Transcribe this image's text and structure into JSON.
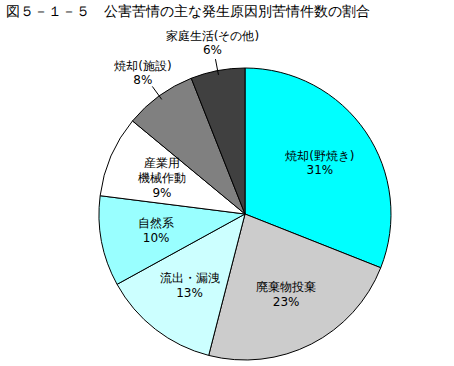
{
  "chart_data": {
    "type": "pie",
    "title": "図５－１－５　公害苦情の主な発生原因別苦情件数の割合",
    "categories": [
      "焼却(野焼き)",
      "廃棄物投棄",
      "流出・漏洩",
      "自然系",
      "産業用\n機械作動",
      "焼却(施設)",
      "家庭生活(その他)"
    ],
    "values": [
      31,
      23,
      13,
      10,
      9,
      8,
      6
    ],
    "value_labels": [
      "31%",
      "23%",
      "13%",
      "10%",
      "9%",
      "8%",
      "6%"
    ],
    "colors": [
      "#00ffff",
      "#cccccc",
      "#ccffff",
      "#99ffff",
      "#ffffff",
      "#808080",
      "#404040"
    ],
    "data_labels": true
  }
}
